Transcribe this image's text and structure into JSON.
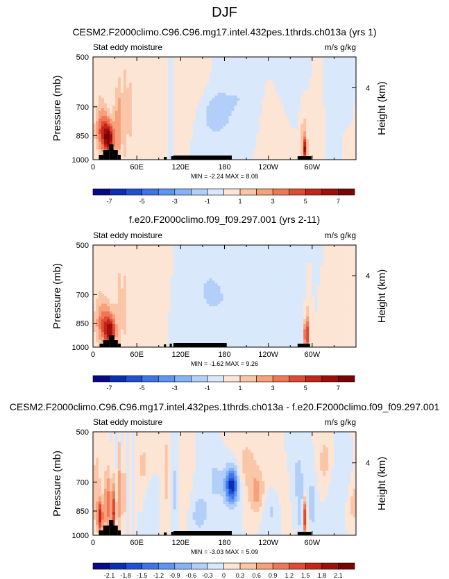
{
  "page_title": "DJF",
  "colors": {
    "diverging": [
      "#08088a",
      "#0a2fb4",
      "#1f51d6",
      "#3d74e8",
      "#5f95f2",
      "#86b3f6",
      "#b1cff8",
      "#d9e8fb",
      "#fde5d5",
      "#fbc5a7",
      "#f7a07c",
      "#ef7755",
      "#e04a34",
      "#c32618",
      "#9f0e0a",
      "#7a0403"
    ],
    "terrain": "#000000"
  },
  "chart_data": [
    {
      "type": "heatmap",
      "panel": "top",
      "title": "CESM2.F2000climo.C96.C96.mg17.intel.432pes.1thrds.ch013a (yrs 1)",
      "left_label": "Stat eddy moisture",
      "right_label": "m/s g/kg",
      "ylabel": "Pressure (mb)",
      "y2label": "Height (km)",
      "y_ticks": [
        "500",
        "700",
        "850",
        "1000"
      ],
      "y2_ticks": [
        "4"
      ],
      "x_ticks": [
        "0",
        "60E",
        "120E",
        "180",
        "120W",
        "60W"
      ],
      "xlim": [
        0,
        360
      ],
      "ylim": [
        1000,
        500
      ],
      "stats_text": "MIN =  -2.24  MAX =   8.08",
      "colorbar_labels": [
        "-7",
        "-5",
        "-3",
        "-1",
        "1",
        "3",
        "5",
        "7"
      ],
      "colorbar_levels": [
        -7,
        -6,
        -5,
        -4,
        -3,
        -2,
        -1,
        0,
        1,
        2,
        3,
        4,
        5,
        6,
        7
      ],
      "min": -2.24,
      "max": 8.08
    },
    {
      "type": "heatmap",
      "panel": "middle",
      "title": "f.e20.F2000climo.f09_f09.297.001 (yrs 2-11)",
      "left_label": "Stat eddy moisture",
      "right_label": "m/s g/kg",
      "ylabel": "Pressure (mb)",
      "y2label": "Height (km)",
      "y_ticks": [
        "500",
        "700",
        "850",
        "1000"
      ],
      "y2_ticks": [
        "4"
      ],
      "x_ticks": [
        "0",
        "60E",
        "120E",
        "180",
        "120W",
        "60W"
      ],
      "xlim": [
        0,
        360
      ],
      "ylim": [
        1000,
        500
      ],
      "stats_text": "MIN =  -1.62  MAX =   9.26",
      "colorbar_labels": [
        "-7",
        "-5",
        "-3",
        "-1",
        "1",
        "3",
        "5",
        "7"
      ],
      "colorbar_levels": [
        -7,
        -6,
        -5,
        -4,
        -3,
        -2,
        -1,
        0,
        1,
        2,
        3,
        4,
        5,
        6,
        7
      ],
      "min": -1.62,
      "max": 9.26
    },
    {
      "type": "heatmap",
      "panel": "bottom",
      "title": "CESM2.F2000climo.C96.C96.mg17.intel.432pes.1thrds.ch013a - f.e20.F2000climo.f09_f09.297.001",
      "left_label": "Stat eddy moisture",
      "right_label": "m/s g/kg",
      "ylabel": "Pressure (mb)",
      "y2label": "Height (km)",
      "y_ticks": [
        "500",
        "700",
        "850",
        "1000"
      ],
      "y2_ticks": [
        "4"
      ],
      "x_ticks": [
        "0",
        "60E",
        "120E",
        "180",
        "120W",
        "60W"
      ],
      "xlim": [
        0,
        360
      ],
      "ylim": [
        1000,
        500
      ],
      "stats_text": "MIN =  -3.03  MAX =   5.09",
      "colorbar_labels": [
        "-2.1",
        "-1.8",
        "-1.5",
        "-1.2",
        "-0.9",
        "-0.6",
        "-0.3",
        "0",
        "0.3",
        "0.6",
        "0.9",
        "1.2",
        "1.5",
        "1.8",
        "2.1"
      ],
      "colorbar_levels": [
        -2.1,
        -1.8,
        -1.5,
        -1.2,
        -0.9,
        -0.6,
        -0.3,
        0,
        0.3,
        0.6,
        0.9,
        1.2,
        1.5,
        1.8,
        2.1
      ],
      "min": -3.03,
      "max": 5.09
    }
  ]
}
